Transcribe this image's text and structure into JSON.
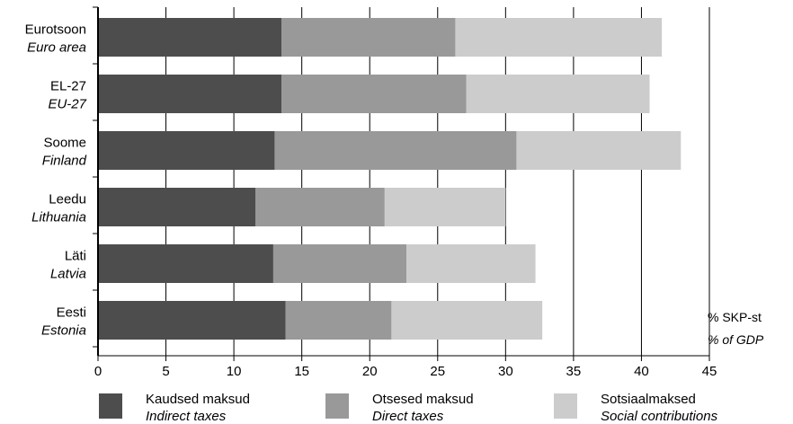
{
  "chart_data": {
    "type": "bar",
    "orientation": "horizontal",
    "stacked": true,
    "categories": [
      {
        "et": "Eurotsoon",
        "en": "Euro area"
      },
      {
        "et": "EL-27",
        "en": "EU-27"
      },
      {
        "et": "Soome",
        "en": "Finland"
      },
      {
        "et": "Leedu",
        "en": "Lithuania"
      },
      {
        "et": "Läti",
        "en": "Latvia"
      },
      {
        "et": "Eesti",
        "en": "Estonia"
      }
    ],
    "series": [
      {
        "name_et": "Kaudsed maksud",
        "name_en": "Indirect taxes",
        "color": "#4d4d4d",
        "values": [
          13.5,
          13.5,
          13.0,
          11.6,
          12.9,
          13.8
        ]
      },
      {
        "name_et": "Otsesed maksud",
        "name_en": "Direct taxes",
        "color": "#999999",
        "values": [
          12.8,
          13.6,
          17.8,
          9.5,
          9.8,
          7.8
        ]
      },
      {
        "name_et": "Sotsiaalmaksed",
        "name_en": "Social contributions",
        "color": "#cccccc",
        "values": [
          15.2,
          13.5,
          12.1,
          8.9,
          9.5,
          11.1
        ]
      }
    ],
    "xlim": [
      0,
      45
    ],
    "xticks": [
      "0",
      "5",
      "10",
      "15",
      "20",
      "25",
      "30",
      "35",
      "40",
      "45"
    ],
    "unit_et": "% SKP-st",
    "unit_en": "% of GDP",
    "grid": "vertical",
    "legend_position": "bottom"
  }
}
